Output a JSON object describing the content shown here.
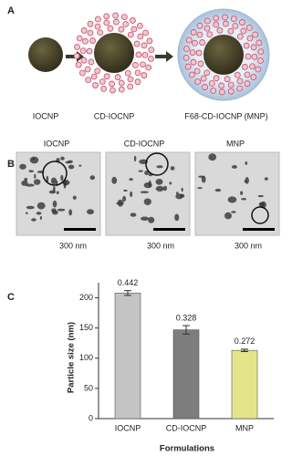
{
  "panel_a": {
    "label": "A",
    "captions": [
      "IOCNP",
      "CD-IOCNP",
      "F68-CD-IOCNP (MNP)"
    ]
  },
  "panel_b": {
    "label": "B",
    "titles": [
      "IOCNP",
      "CD-IOCNP",
      "MNP"
    ],
    "scale_labels": [
      "300 nm",
      "300 nm",
      "300 nm"
    ]
  },
  "panel_c": {
    "label": "C"
  },
  "chart_data": {
    "type": "bar",
    "ylabel": "Particle size (nm)",
    "xlabel": "Formulations",
    "categories": [
      "IOCNP",
      "CD-IOCNP",
      "MNP"
    ],
    "values": [
      208,
      147,
      113
    ],
    "errors": [
      4,
      7,
      2
    ],
    "colors": [
      "#c4c4c4",
      "#7d7d7d",
      "#e4e58a"
    ],
    "annotations": [
      "0.442",
      "0.328",
      "0.272"
    ],
    "ylim": [
      0,
      225
    ],
    "yticks": [
      0,
      50,
      100,
      150,
      200
    ]
  }
}
